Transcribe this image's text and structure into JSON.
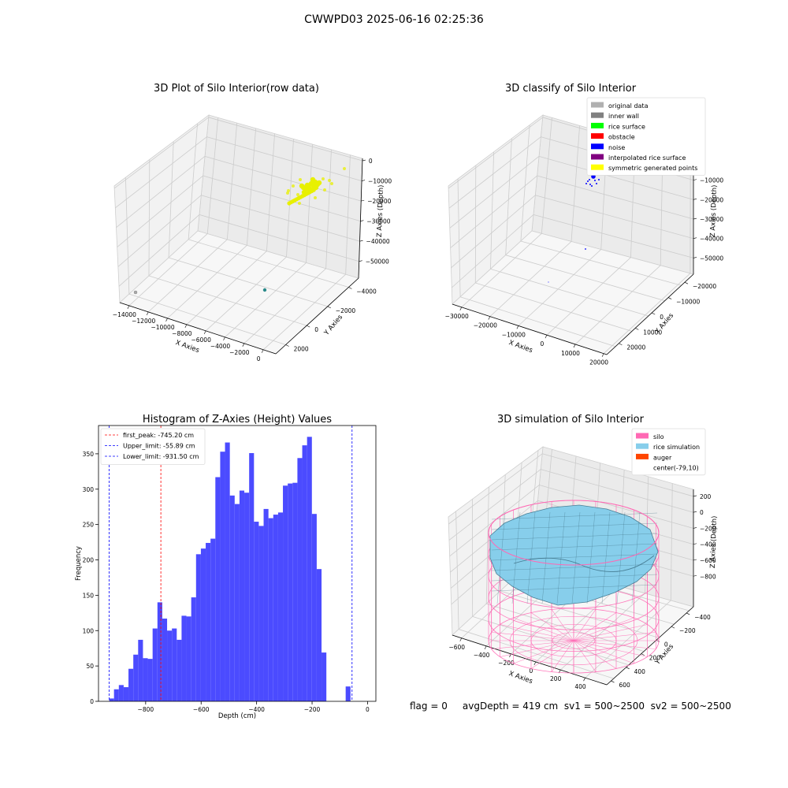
{
  "figure_title": "CWWPD03 2025-06-16 02:25:36",
  "footer_text": "flag = 0     avgDepth = 419 cm  sv1 = 500~2500  sv2 = 500~2500",
  "chart_data": [
    {
      "id": "raw3d",
      "type": "scatter",
      "projection": "3d",
      "title": "3D Plot of Silo Interior(row data)",
      "xlabel": "X Axies",
      "ylabel": "Y Axies",
      "zlabel": "Z Axies (Depth)",
      "x_ticks": [
        "−14000",
        "−12000",
        "−10000",
        "−8000",
        "−6000",
        "−4000",
        "−2000",
        "0"
      ],
      "y_ticks": [
        "2000",
        "0",
        "−2000",
        "−4000"
      ],
      "z_ticks": [
        "0",
        "−10000",
        "−20000",
        "−30000",
        "−40000",
        "−50000"
      ],
      "colors": {
        "points": "#e8f000",
        "outlier": "#2a8a8a"
      }
    },
    {
      "id": "classify3d",
      "type": "scatter",
      "projection": "3d",
      "title": "3D classify of Silo Interior",
      "xlabel": "X Axies",
      "ylabel": "Y Axies",
      "zlabel": "Z Axies (Depth)",
      "x_ticks": [
        "−30000",
        "−20000",
        "−10000",
        "0",
        "10000",
        "20000"
      ],
      "y_ticks": [
        "20000",
        "10000",
        "0",
        "−10000",
        "−20000"
      ],
      "z_ticks": [
        "0",
        "−10000",
        "−20000",
        "−30000",
        "−40000",
        "−50000"
      ],
      "legend_position": "top-right",
      "legend": [
        {
          "label": "original data",
          "color": "#b0b0b0"
        },
        {
          "label": "inner wall",
          "color": "#808080"
        },
        {
          "label": "rice surface",
          "color": "#00ff00"
        },
        {
          "label": "obstacle",
          "color": "#ff0000"
        },
        {
          "label": "noise",
          "color": "#0000ff"
        },
        {
          "label": "interpolated rice surface",
          "color": "#800080"
        },
        {
          "label": "symmetric generated points",
          "color": "#ffff00"
        }
      ]
    },
    {
      "id": "histogram",
      "type": "bar",
      "title": "Histogram of Z-Axies (Height) Values",
      "xlabel": "Depth (cm)",
      "ylabel": "Frequency",
      "xlim": [
        -970,
        30
      ],
      "ylim": [
        0,
        390
      ],
      "x_ticks": [
        -800,
        -600,
        -400,
        -200,
        0
      ],
      "y_ticks": [
        0,
        50,
        100,
        150,
        200,
        250,
        300,
        350
      ],
      "bar_color": "#4b4bff",
      "bin_start": -931.5,
      "bin_width": 17.4,
      "values": [
        4,
        17,
        23,
        20,
        46,
        66,
        87,
        61,
        60,
        103,
        140,
        117,
        100,
        103,
        87,
        121,
        120,
        147,
        208,
        216,
        224,
        230,
        317,
        353,
        366,
        291,
        279,
        298,
        295,
        351,
        254,
        248,
        272,
        259,
        264,
        267,
        305,
        308,
        309,
        344,
        362,
        374,
        265,
        187,
        69,
        0,
        0,
        0,
        0,
        21
      ],
      "lines": [
        {
          "label": "first_peak: -745.20 cm",
          "x": -745.2,
          "color": "#ff0000"
        },
        {
          "label": "Upper_limit: -55.89 cm",
          "x": -55.89,
          "color": "#0000ff"
        },
        {
          "label": "Lower_limit: -931.50 cm",
          "x": -931.5,
          "color": "#0000ff"
        }
      ],
      "legend_position": "top-left"
    },
    {
      "id": "sim3d",
      "type": "surface",
      "projection": "3d",
      "title": "3D simulation of Silo Interior",
      "xlabel": "X Axies",
      "ylabel": "Y Axies",
      "zlabel": "Z Axies (Depth)",
      "x_ticks": [
        "−600",
        "−400",
        "−200",
        "0",
        "200",
        "400"
      ],
      "y_ticks": [
        "600",
        "400",
        "200",
        "0",
        "−200",
        "−400"
      ],
      "z_ticks": [
        "200",
        "0",
        "−200",
        "−400",
        "−600",
        "−800"
      ],
      "legend_position": "top-right",
      "legend": [
        {
          "label": "silo",
          "color": "#ff69b4"
        },
        {
          "label": "rice simulation",
          "color": "#87ceeb"
        },
        {
          "label": "auger",
          "color": "#ff4500"
        },
        {
          "label": "center(-79,10)",
          "color": ""
        }
      ]
    }
  ]
}
